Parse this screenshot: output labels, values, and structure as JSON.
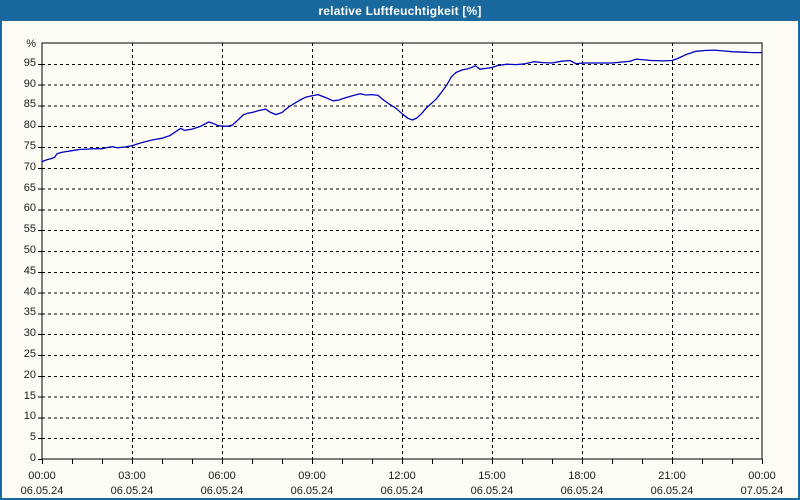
{
  "window": {
    "title": "relative Luftfeuchtigkeit [%]",
    "titlebar_color": "#1a699e",
    "background_color": "#fdfdf5"
  },
  "chart_data": {
    "type": "line",
    "title": "relative Luftfeuchtigkeit [%]",
    "ylabel": "%",
    "xlabel": "",
    "ylim": [
      0,
      100
    ],
    "xlim_hours": [
      0,
      24
    ],
    "grid": "dashed",
    "legend": "none",
    "line_color": "#0000c0",
    "grid_color": "#000000",
    "frame_color": "#000000",
    "y_ticks": [
      0,
      5,
      10,
      15,
      20,
      25,
      30,
      35,
      40,
      45,
      50,
      55,
      60,
      65,
      70,
      75,
      80,
      85,
      90,
      95
    ],
    "y_axis_top_label": "%",
    "minor_x_tick_every_hours": 1,
    "x_ticks": [
      {
        "hours": 0,
        "time": "00:00",
        "date": "06.05.24"
      },
      {
        "hours": 3,
        "time": "03:00",
        "date": "06.05.24"
      },
      {
        "hours": 6,
        "time": "06:00",
        "date": "06.05.24"
      },
      {
        "hours": 9,
        "time": "09:00",
        "date": "06.05.24"
      },
      {
        "hours": 12,
        "time": "12:00",
        "date": "06.05.24"
      },
      {
        "hours": 15,
        "time": "15:00",
        "date": "06.05.24"
      },
      {
        "hours": 18,
        "time": "18:00",
        "date": "06.05.24"
      },
      {
        "hours": 21,
        "time": "21:00",
        "date": "06.05.24"
      },
      {
        "hours": 24,
        "time": "00:00",
        "date": "07.05.24"
      }
    ],
    "series": [
      {
        "name": "relative Luftfeuchtigkeit",
        "unit": "%",
        "points": [
          [
            0,
            71.5
          ],
          [
            0.15,
            71.9
          ],
          [
            0.3,
            72.2
          ],
          [
            0.42,
            72.5
          ],
          [
            0.5,
            73.4
          ],
          [
            0.65,
            73.7
          ],
          [
            0.8,
            73.9
          ],
          [
            1,
            74.1
          ],
          [
            1.25,
            74.4
          ],
          [
            1.5,
            74.5
          ],
          [
            1.75,
            74.6
          ],
          [
            2,
            74.6
          ],
          [
            2.2,
            74.9
          ],
          [
            2.35,
            75.1
          ],
          [
            2.5,
            74.8
          ],
          [
            2.75,
            75.0
          ],
          [
            3,
            75.3
          ],
          [
            3.25,
            75.9
          ],
          [
            3.5,
            76.4
          ],
          [
            3.75,
            76.8
          ],
          [
            4,
            77.1
          ],
          [
            4.25,
            77.7
          ],
          [
            4.5,
            78.9
          ],
          [
            4.62,
            79.5
          ],
          [
            4.75,
            79.0
          ],
          [
            5,
            79.3
          ],
          [
            5.3,
            80.0
          ],
          [
            5.55,
            81.0
          ],
          [
            5.7,
            80.7
          ],
          [
            5.85,
            80.2
          ],
          [
            6,
            80.0
          ],
          [
            6.2,
            80.0
          ],
          [
            6.35,
            80.3
          ],
          [
            6.55,
            81.6
          ],
          [
            6.7,
            82.7
          ],
          [
            6.85,
            83.1
          ],
          [
            7,
            83.3
          ],
          [
            7.2,
            83.7
          ],
          [
            7.45,
            84.1
          ],
          [
            7.6,
            83.4
          ],
          [
            7.8,
            82.8
          ],
          [
            8,
            83.3
          ],
          [
            8.2,
            84.5
          ],
          [
            8.4,
            85.4
          ],
          [
            8.6,
            86.3
          ],
          [
            8.8,
            87.0
          ],
          [
            9,
            87.3
          ],
          [
            9.2,
            87.6
          ],
          [
            9.45,
            86.9
          ],
          [
            9.7,
            86.1
          ],
          [
            9.9,
            86.3
          ],
          [
            10.1,
            86.8
          ],
          [
            10.35,
            87.3
          ],
          [
            10.6,
            87.8
          ],
          [
            10.8,
            87.5
          ],
          [
            11,
            87.6
          ],
          [
            11.2,
            87.4
          ],
          [
            11.4,
            86.2
          ],
          [
            11.6,
            85.2
          ],
          [
            11.8,
            84.3
          ],
          [
            12,
            83.0
          ],
          [
            12.2,
            81.9
          ],
          [
            12.35,
            81.5
          ],
          [
            12.5,
            82.0
          ],
          [
            12.65,
            83.0
          ],
          [
            12.8,
            84.3
          ],
          [
            13,
            85.6
          ],
          [
            13.15,
            86.6
          ],
          [
            13.3,
            88.0
          ],
          [
            13.5,
            90.0
          ],
          [
            13.65,
            91.9
          ],
          [
            13.8,
            92.9
          ],
          [
            14,
            93.5
          ],
          [
            14.2,
            93.8
          ],
          [
            14.45,
            94.5
          ],
          [
            14.6,
            93.7
          ],
          [
            14.8,
            93.9
          ],
          [
            15,
            94.1
          ],
          [
            15.2,
            94.6
          ],
          [
            15.5,
            94.9
          ],
          [
            15.8,
            94.8
          ],
          [
            16.1,
            95.0
          ],
          [
            16.4,
            95.5
          ],
          [
            16.7,
            95.3
          ],
          [
            17,
            95.2
          ],
          [
            17.3,
            95.6
          ],
          [
            17.6,
            95.8
          ],
          [
            17.8,
            95.0
          ],
          [
            18,
            95.2
          ],
          [
            18.5,
            95.2
          ],
          [
            19,
            95.2
          ],
          [
            19.3,
            95.4
          ],
          [
            19.6,
            95.6
          ],
          [
            19.8,
            96.1
          ],
          [
            20,
            96.0
          ],
          [
            20.3,
            95.8
          ],
          [
            20.7,
            95.7
          ],
          [
            21,
            95.8
          ],
          [
            21.2,
            96.3
          ],
          [
            21.5,
            97.3
          ],
          [
            21.8,
            98.0
          ],
          [
            22.1,
            98.2
          ],
          [
            22.4,
            98.3
          ],
          [
            22.7,
            98.1
          ],
          [
            23,
            97.9
          ],
          [
            23.4,
            97.8
          ],
          [
            23.7,
            97.7
          ],
          [
            24,
            97.7
          ]
        ]
      }
    ]
  }
}
